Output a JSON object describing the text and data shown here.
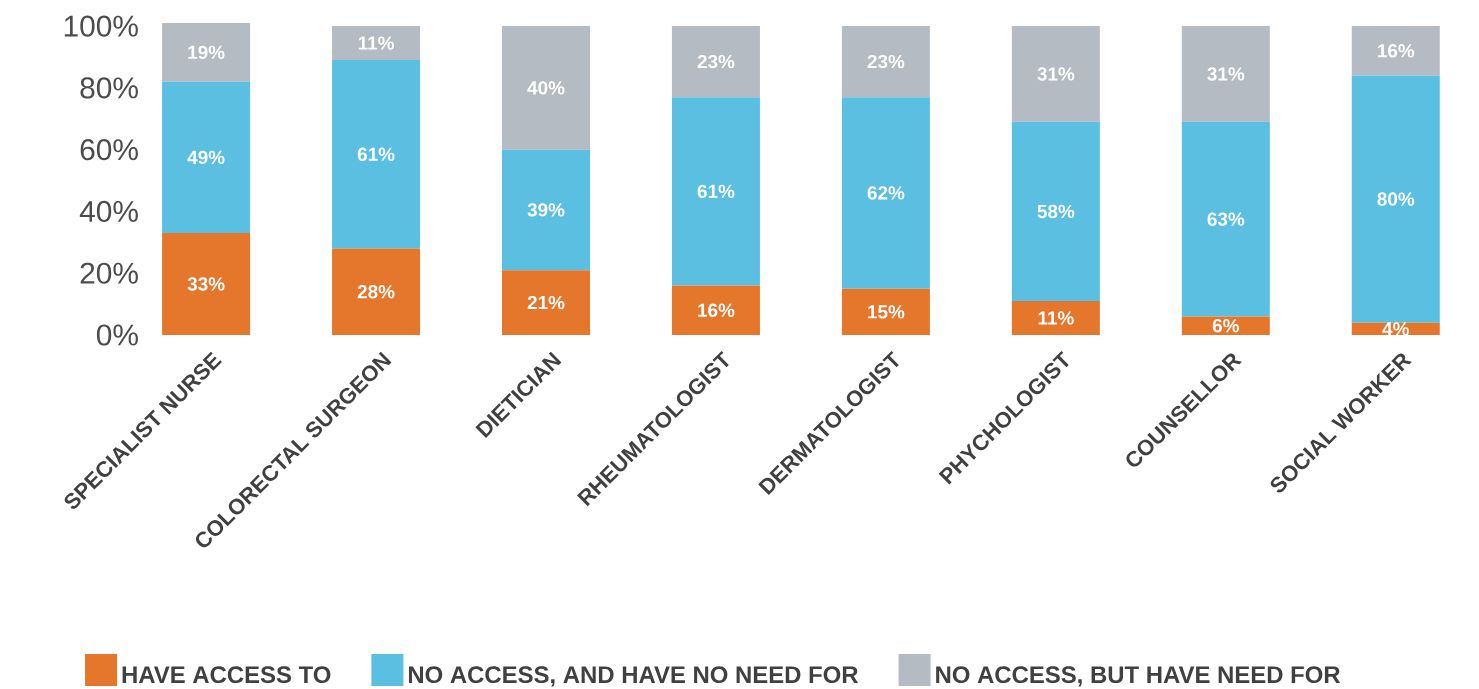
{
  "chart_data": {
    "type": "bar",
    "stacked": true,
    "categories": [
      "SPECIALIST NURSE",
      "COLORECTAL SURGEON",
      "DIETICIAN",
      "RHEUMATOLOGIST",
      "DERMATOLOGIST",
      "PHYCHOLOGIST",
      "COUNSELLOR",
      "SOCIAL WORKER"
    ],
    "series": [
      {
        "name": "HAVE ACCESS TO",
        "color": "#e5772c",
        "values": [
          33,
          28,
          21,
          16,
          15,
          11,
          6,
          4
        ],
        "value_labels": [
          "33%",
          "28%",
          "21%",
          "16%",
          "15%",
          "11%",
          "6%",
          "4%"
        ]
      },
      {
        "name": "NO ACCESS, AND HAVE NO NEED FOR",
        "color": "#5bbfe2",
        "values": [
          49,
          61,
          39,
          61,
          62,
          58,
          63,
          80
        ],
        "value_labels": [
          "49%",
          "61%",
          "39%",
          "61%",
          "62%",
          "58%",
          "63%",
          "80%"
        ]
      },
      {
        "name": "NO ACCESS, BUT HAVE NEED FOR",
        "color": "#b5bbc2",
        "values": [
          19,
          11,
          40,
          23,
          23,
          31,
          31,
          16
        ],
        "value_labels": [
          "19%",
          "11%",
          "40%",
          "23%",
          "23%",
          "31%",
          "31%",
          "16%"
        ]
      }
    ],
    "ylim": [
      0,
      101
    ],
    "yticks": [
      {
        "value": 0,
        "label": "0%"
      },
      {
        "value": 20,
        "label": "20%"
      },
      {
        "value": 40,
        "label": "40%"
      },
      {
        "value": 60,
        "label": "60%"
      },
      {
        "value": 80,
        "label": "80%"
      },
      {
        "value": 100,
        "label": "100%"
      }
    ],
    "legend": "bottom"
  }
}
